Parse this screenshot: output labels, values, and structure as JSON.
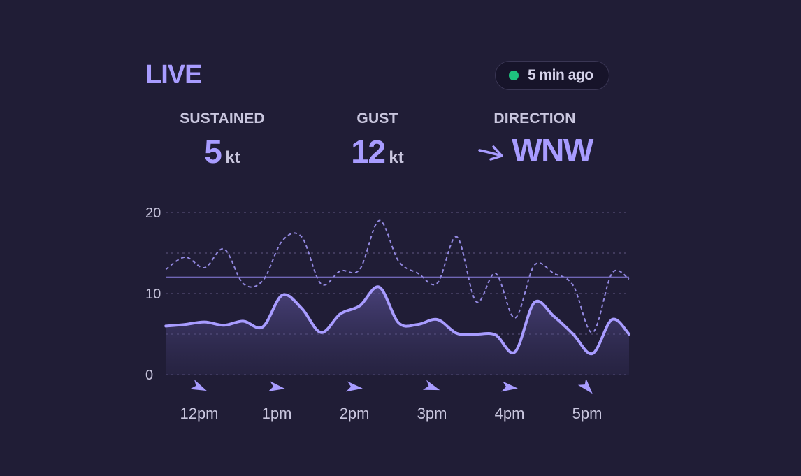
{
  "header": {
    "title": "LIVE",
    "status": "5 min ago",
    "status_color": "#1ec27f"
  },
  "stats": {
    "sustained": {
      "label": "SUSTAINED",
      "value": "5",
      "unit": "kt"
    },
    "gust": {
      "label": "GUST",
      "value": "12",
      "unit": "kt"
    },
    "direction": {
      "label": "DIRECTION",
      "value": "WNW",
      "icon": "arrow-right-icon"
    }
  },
  "colors": {
    "background": "#201d36",
    "accent": "#a89cff",
    "text": "#c9c6de"
  },
  "chart_data": {
    "type": "area",
    "x_labels": [
      "12pm",
      "1pm",
      "2pm",
      "3pm",
      "4pm",
      "5pm"
    ],
    "y_ticks": [
      "20",
      "10",
      "0"
    ],
    "ylim": [
      0,
      20
    ],
    "x": [
      0,
      0.25,
      0.5,
      0.75,
      1,
      1.25,
      1.5,
      1.75,
      2,
      2.25,
      2.5,
      2.75,
      3,
      3.25,
      3.5,
      3.75,
      4,
      4.25,
      4.5,
      4.75,
      5,
      5.25,
      5.5,
      5.75,
      6
    ],
    "series": [
      {
        "values": [
          6,
          6.2,
          6.5,
          6.1,
          6.6,
          5.9,
          9.8,
          8.2,
          5.2,
          7.5,
          8.5,
          10.8,
          6.4,
          6.2,
          6.8,
          5.1,
          5,
          4.9,
          2.8,
          8.9,
          7.2,
          5,
          2.6,
          6.8,
          5
        ],
        "style": "solid-area"
      },
      {
        "values": [
          13,
          14.5,
          13.2,
          15.5,
          11.2,
          11.6,
          16.5,
          17,
          11.2,
          12.8,
          13,
          19,
          14,
          12.5,
          11.3,
          17,
          9,
          12.5,
          7,
          13.5,
          12.5,
          11,
          5.2,
          12.5,
          11.8
        ],
        "style": "dashed"
      }
    ],
    "reference_value": 12,
    "direction_arrows": [
      {
        "time": "12pm",
        "angle": 25
      },
      {
        "time": "1pm",
        "angle": 10
      },
      {
        "time": "2pm",
        "angle": 8
      },
      {
        "time": "3pm",
        "angle": 20
      },
      {
        "time": "4pm",
        "angle": 8
      },
      {
        "time": "5pm",
        "angle": 50
      }
    ],
    "grid": true
  }
}
